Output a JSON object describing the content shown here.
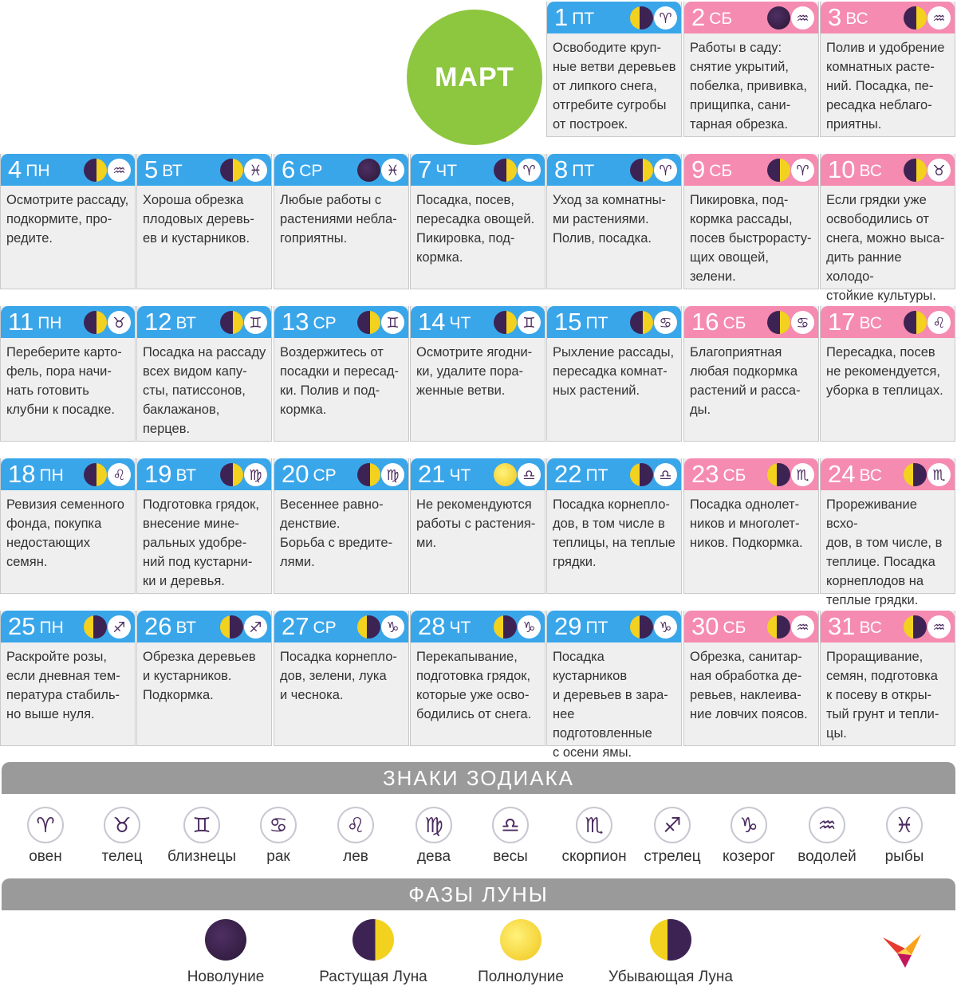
{
  "month": "МАРТ",
  "days": [
    {
      "num": "1",
      "wd": "ПТ",
      "weekend": false,
      "moon": "waning",
      "zodiac": "♈",
      "zodiac_name": "овен",
      "text": "Освободите круп-\nные ветви деревьев\nот липкого снега,\nотгребите сугробы\nот построек."
    },
    {
      "num": "2",
      "wd": "СБ",
      "weekend": true,
      "moon": "new",
      "zodiac": "♒",
      "zodiac_name": "водолей",
      "text": "Работы в саду:\nснятие укрытий,\nпобелка, прививка,\nприщипка, сани-\nтарная обрезка."
    },
    {
      "num": "3",
      "wd": "ВС",
      "weekend": true,
      "moon": "waxing",
      "zodiac": "♒",
      "zodiac_name": "водолей",
      "text": "Полив и удобрение\nкомнатных расте-\nний. Посадка, пе-\nресадка неблаго-\nприятны."
    },
    {
      "num": "4",
      "wd": "ПН",
      "weekend": false,
      "moon": "waxing",
      "zodiac": "♒",
      "zodiac_name": "водолей",
      "text": "Осмотрите рассаду,\nподкормите, про-\nредите."
    },
    {
      "num": "5",
      "wd": "ВТ",
      "weekend": false,
      "moon": "waxing",
      "zodiac": "♓",
      "zodiac_name": "рыбы",
      "text": "Хороша обрезка\nплодовых деревь-\nев и кустарников."
    },
    {
      "num": "6",
      "wd": "СР",
      "weekend": false,
      "moon": "new",
      "zodiac": "♓",
      "zodiac_name": "рыбы",
      "text": "Любые работы с\nрастениями небла-\nгоприятны."
    },
    {
      "num": "7",
      "wd": "ЧТ",
      "weekend": false,
      "moon": "waxing",
      "zodiac": "♈",
      "zodiac_name": "овен",
      "text": "Посадка, посев,\nпересадка овощей.\nПикировка, под-\nкормка."
    },
    {
      "num": "8",
      "wd": "ПТ",
      "weekend": false,
      "moon": "waxing",
      "zodiac": "♈",
      "zodiac_name": "овен",
      "text": "Уход за комнатны-\nми растениями.\nПолив, посадка."
    },
    {
      "num": "9",
      "wd": "СБ",
      "weekend": true,
      "moon": "waxing",
      "zodiac": "♈",
      "zodiac_name": "овен",
      "text": "Пикировка, под-\nкормка рассады,\nпосев быстрорасту-\nщих овощей,\nзелени."
    },
    {
      "num": "10",
      "wd": "ВС",
      "weekend": true,
      "moon": "waxing",
      "zodiac": "♉",
      "zodiac_name": "телец",
      "text": "Если грядки уже\nосвободились от\nснега, можно выса-\nдить ранние холодо-\nстойкие культуры."
    },
    {
      "num": "11",
      "wd": "ПН",
      "weekend": false,
      "moon": "waxing",
      "zodiac": "♉",
      "zodiac_name": "телец",
      "text": "Переберите карто-\nфель, пора начи-\nнать готовить\nклубни к посадке."
    },
    {
      "num": "12",
      "wd": "ВТ",
      "weekend": false,
      "moon": "waxing",
      "zodiac": "♊",
      "zodiac_name": "близнецы",
      "text": "Посадка на рассаду\nвсех видом капу-\nсты, патиссонов,\nбаклажанов,\nперцев."
    },
    {
      "num": "13",
      "wd": "СР",
      "weekend": false,
      "moon": "waxing",
      "zodiac": "♊",
      "zodiac_name": "близнецы",
      "text": "Воздержитесь от\nпосадки и пересад-\nки. Полив и под-\nкормка."
    },
    {
      "num": "14",
      "wd": "ЧТ",
      "weekend": false,
      "moon": "waxing",
      "zodiac": "♊",
      "zodiac_name": "близнецы",
      "text": "Осмотрите ягодни-\nки, удалите пора-\nженные ветви."
    },
    {
      "num": "15",
      "wd": "ПТ",
      "weekend": false,
      "moon": "waxing",
      "zodiac": "♋",
      "zodiac_name": "рак",
      "text": "Рыхление рассады,\nпересадка комнат-\nных растений."
    },
    {
      "num": "16",
      "wd": "СБ",
      "weekend": true,
      "moon": "waxing",
      "zodiac": "♋",
      "zodiac_name": "рак",
      "text": "Благоприятная\nлюбая подкормка\nрастений и расса-\nды."
    },
    {
      "num": "17",
      "wd": "ВС",
      "weekend": true,
      "moon": "waxing",
      "zodiac": "♌",
      "zodiac_name": "лев",
      "text": "Пересадка, посев\nне рекомендуется,\nуборка в теплицах."
    },
    {
      "num": "18",
      "wd": "ПН",
      "weekend": false,
      "moon": "waxing",
      "zodiac": "♌",
      "zodiac_name": "лев",
      "text": "Ревизия семенного\nфонда, покупка\nнедостающих\nсемян."
    },
    {
      "num": "19",
      "wd": "ВТ",
      "weekend": false,
      "moon": "waxing",
      "zodiac": "♍",
      "zodiac_name": "дева",
      "text": "Подготовка грядок,\nвнесение мине-\nральных удобре-\nний под кустарни-\nки и деревья."
    },
    {
      "num": "20",
      "wd": "СР",
      "weekend": false,
      "moon": "waxing",
      "zodiac": "♍",
      "zodiac_name": "дева",
      "text": "Весеннее равно-\nденствие.\nБорьба с вредите-\nлями."
    },
    {
      "num": "21",
      "wd": "ЧТ",
      "weekend": false,
      "moon": "full",
      "zodiac": "♎",
      "zodiac_name": "весы",
      "text": "Не рекомендуются\nработы с растения-\nми."
    },
    {
      "num": "22",
      "wd": "ПТ",
      "weekend": false,
      "moon": "waning",
      "zodiac": "♎",
      "zodiac_name": "весы",
      "text": "Посадка корнепло-\nдов, в том числе в\nтеплицы, на теплые\nгрядки."
    },
    {
      "num": "23",
      "wd": "СБ",
      "weekend": true,
      "moon": "waning",
      "zodiac": "♏",
      "zodiac_name": "скорпион",
      "text": "Посадка однолет-\nников и многолет-\nников. Подкормка."
    },
    {
      "num": "24",
      "wd": "ВС",
      "weekend": true,
      "moon": "waning",
      "zodiac": "♏",
      "zodiac_name": "скорпион",
      "text": "Прореживание всхо-\nдов, в том числе, в\nтеплице. Посадка\nкорнеплодов на\nтеплые грядки."
    },
    {
      "num": "25",
      "wd": "ПН",
      "weekend": false,
      "moon": "waning",
      "zodiac": "♐",
      "zodiac_name": "стрелец",
      "text": "Раскройте розы,\nесли дневная тем-\nпература стабиль-\nно выше нуля."
    },
    {
      "num": "26",
      "wd": "ВТ",
      "weekend": false,
      "moon": "waning",
      "zodiac": "♐",
      "zodiac_name": "стрелец",
      "text": "Обрезка деревьев\nи кустарников.\nПодкормка."
    },
    {
      "num": "27",
      "wd": "СР",
      "weekend": false,
      "moon": "waning",
      "zodiac": "♑",
      "zodiac_name": "козерог",
      "text": "Посадка корнепло-\nдов, зелени, лука\nи чеснока."
    },
    {
      "num": "28",
      "wd": "ЧТ",
      "weekend": false,
      "moon": "waning",
      "zodiac": "♑",
      "zodiac_name": "козерог",
      "text": "Перекапывание,\nподготовка грядок,\nкоторые уже осво-\nбодились от снега."
    },
    {
      "num": "29",
      "wd": "ПТ",
      "weekend": false,
      "moon": "waning",
      "zodiac": "♑",
      "zodiac_name": "козерог",
      "text": "Посадка кустарников\nи деревьев в зара-\nнее подготовленные\nс осени ямы."
    },
    {
      "num": "30",
      "wd": "СБ",
      "weekend": true,
      "moon": "waning",
      "zodiac": "♒",
      "zodiac_name": "водолей",
      "text": "Обрезка, санитар-\nная обработка де-\nревьев, наклеива-\nние ловчих поясов."
    },
    {
      "num": "31",
      "wd": "ВС",
      "weekend": true,
      "moon": "waning",
      "zodiac": "♒",
      "zodiac_name": "водолей",
      "text": "Проращивание,\nсемян, подготовка\nк посеву в откры-\nтый грунт и тепли-\nцы."
    }
  ],
  "zodiac_section_title": "ЗНАКИ ЗОДИАКА",
  "zodiac_legend": [
    {
      "symbol": "♈",
      "label": "овен",
      "icon": "aries-icon"
    },
    {
      "symbol": "♉",
      "label": "телец",
      "icon": "taurus-icon"
    },
    {
      "symbol": "♊",
      "label": "близнецы",
      "icon": "gemini-icon"
    },
    {
      "symbol": "♋",
      "label": "рак",
      "icon": "cancer-icon"
    },
    {
      "symbol": "♌",
      "label": "лев",
      "icon": "leo-icon"
    },
    {
      "symbol": "♍",
      "label": "дева",
      "icon": "virgo-icon"
    },
    {
      "symbol": "♎",
      "label": "весы",
      "icon": "libra-icon"
    },
    {
      "symbol": "♏",
      "label": "скорпион",
      "icon": "scorpio-icon"
    },
    {
      "symbol": "♐",
      "label": "стрелец",
      "icon": "sagittarius-icon"
    },
    {
      "symbol": "♑",
      "label": "козерог",
      "icon": "capricorn-icon"
    },
    {
      "symbol": "♒",
      "label": "водолей",
      "icon": "aquarius-icon"
    },
    {
      "symbol": "♓",
      "label": "рыбы",
      "icon": "pisces-icon"
    }
  ],
  "moon_section_title": "ФАЗЫ ЛУНЫ",
  "moon_legend": [
    {
      "phase": "new",
      "label": "Новолуние"
    },
    {
      "phase": "waxing",
      "label": "Растущая Луна"
    },
    {
      "phase": "full",
      "label": "Полнолуние"
    },
    {
      "phase": "waning",
      "label": "Убывающая Луна"
    }
  ],
  "colors": {
    "weekday_header": "#3aa6ea",
    "weekend_header": "#f58bb0",
    "month_circle": "#8dc63f",
    "section_bar": "#9a9a9a",
    "cell_background": "#efefef"
  }
}
